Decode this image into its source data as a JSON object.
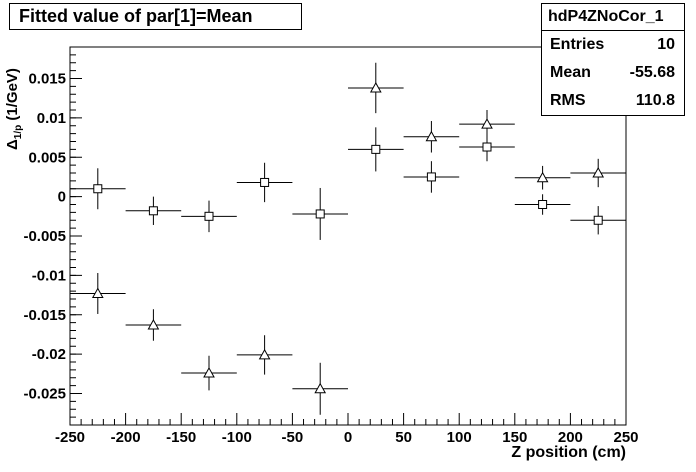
{
  "title": "Fitted value of par[1]=Mean",
  "stats": {
    "name": "hdP4ZNoCor_1",
    "rows": [
      {
        "label": "Entries",
        "value": "10"
      },
      {
        "label": "Mean",
        "value": "-55.68"
      },
      {
        "label": "RMS",
        "value": "110.8"
      }
    ]
  },
  "axes": {
    "xlabel": "Z position (cm)",
    "ylabel_main": "Δ",
    "ylabel_sub": "1/p",
    "ylabel_unit": " (1/GeV)"
  },
  "chart_data": {
    "type": "scatter",
    "xlim": [
      -250,
      250
    ],
    "ylim": [
      -0.029,
      0.019
    ],
    "x_ticks": [
      -250,
      -200,
      -150,
      -100,
      -50,
      0,
      50,
      100,
      150,
      200,
      250
    ],
    "y_ticks": [
      -0.025,
      -0.02,
      -0.015,
      -0.01,
      -0.005,
      0,
      0.005,
      0.01,
      0.015
    ],
    "x_tick_labels": [
      "-250",
      "-200",
      "-150",
      "-100",
      "-50",
      "0",
      "50",
      "100",
      "150",
      "200",
      "250"
    ],
    "y_tick_labels": [
      "-0.025",
      "-0.02",
      "-0.015",
      "-0.01",
      "-0.005",
      "0",
      "0.005",
      "0.01",
      "0.015"
    ],
    "x_halfwidth": 25,
    "grid": false,
    "series": [
      {
        "marker": "square",
        "x": [
          -225,
          -175,
          -125,
          -75,
          -25,
          25,
          75,
          125,
          175,
          225
        ],
        "y": [
          0.001,
          -0.0018,
          -0.0025,
          0.0018,
          -0.0022,
          0.006,
          0.0025,
          0.0063,
          -0.001,
          -0.003
        ],
        "yerr": [
          0.0026,
          0.0018,
          0.002,
          0.0025,
          0.0033,
          0.0028,
          0.002,
          0.0018,
          0.0013,
          0.0018
        ]
      },
      {
        "marker": "triangle",
        "x": [
          -225,
          -175,
          -125,
          -75,
          -25,
          25,
          75,
          125,
          175,
          225
        ],
        "y": [
          -0.0123,
          -0.0163,
          -0.0224,
          -0.0201,
          -0.0244,
          0.0138,
          0.0076,
          0.0092,
          0.0024,
          0.003
        ],
        "yerr": [
          0.0026,
          0.002,
          0.0022,
          0.0025,
          0.0033,
          0.0032,
          0.002,
          0.0018,
          0.0015,
          0.0018
        ]
      }
    ]
  }
}
